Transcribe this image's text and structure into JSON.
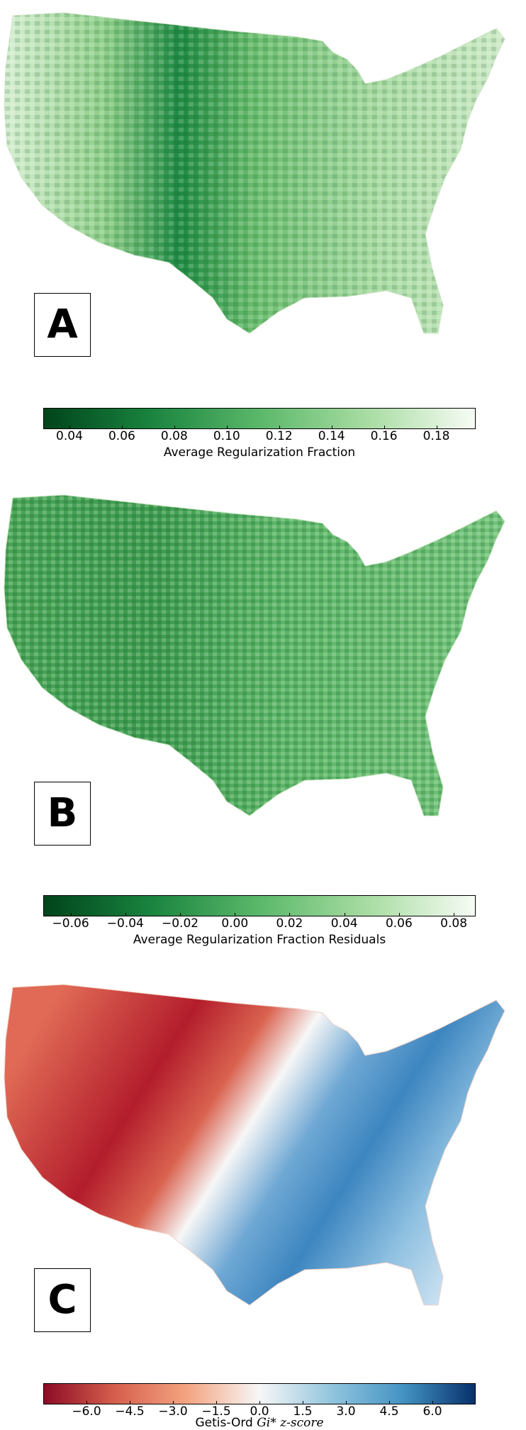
{
  "panels": [
    {
      "label": "A",
      "colorbar": {
        "ticks": [
          "0.04",
          "0.06",
          "0.08",
          "0.10",
          "0.12",
          "0.14",
          "0.16",
          "0.18"
        ],
        "tick_values": [
          0.04,
          0.06,
          0.08,
          0.1,
          0.12,
          0.14,
          0.16,
          0.18
        ],
        "range": [
          0.03,
          0.195
        ],
        "label": "Average Regularization Fraction",
        "colors": [
          "#00441b",
          "#1a843f",
          "#5bb86a",
          "#a8dca2",
          "#f7fcf5"
        ]
      }
    },
    {
      "label": "B",
      "colorbar": {
        "ticks": [
          "−0.06",
          "−0.04",
          "−0.02",
          "0.00",
          "0.02",
          "0.04",
          "0.06",
          "0.08"
        ],
        "tick_values": [
          -0.06,
          -0.04,
          -0.02,
          0.0,
          0.02,
          0.04,
          0.06,
          0.08
        ],
        "range": [
          -0.07,
          0.088
        ],
        "label": "Average Regularization Fraction Residuals",
        "colors": [
          "#00441b",
          "#1a843f",
          "#5bb86a",
          "#a8dca2",
          "#f7fcf5"
        ]
      }
    },
    {
      "label": "C",
      "colorbar": {
        "ticks": [
          "−6.0",
          "−4.5",
          "−3.0",
          "−1.5",
          "0.0",
          "1.5",
          "3.0",
          "4.5",
          "6.0"
        ],
        "tick_values": [
          -6.0,
          -4.5,
          -3.0,
          -1.5,
          0.0,
          1.5,
          3.0,
          4.5,
          6.0
        ],
        "range": [
          -7.5,
          7.5
        ],
        "label_prefix": "Getis-Ord",
        "label_symbol": "Gi*",
        "label_suffix": "z-score",
        "colors": [
          "#8c0c25",
          "#d6604d",
          "#f4a582",
          "#f7f7f7",
          "#92c5de",
          "#4393c3",
          "#08306b"
        ]
      }
    }
  ]
}
